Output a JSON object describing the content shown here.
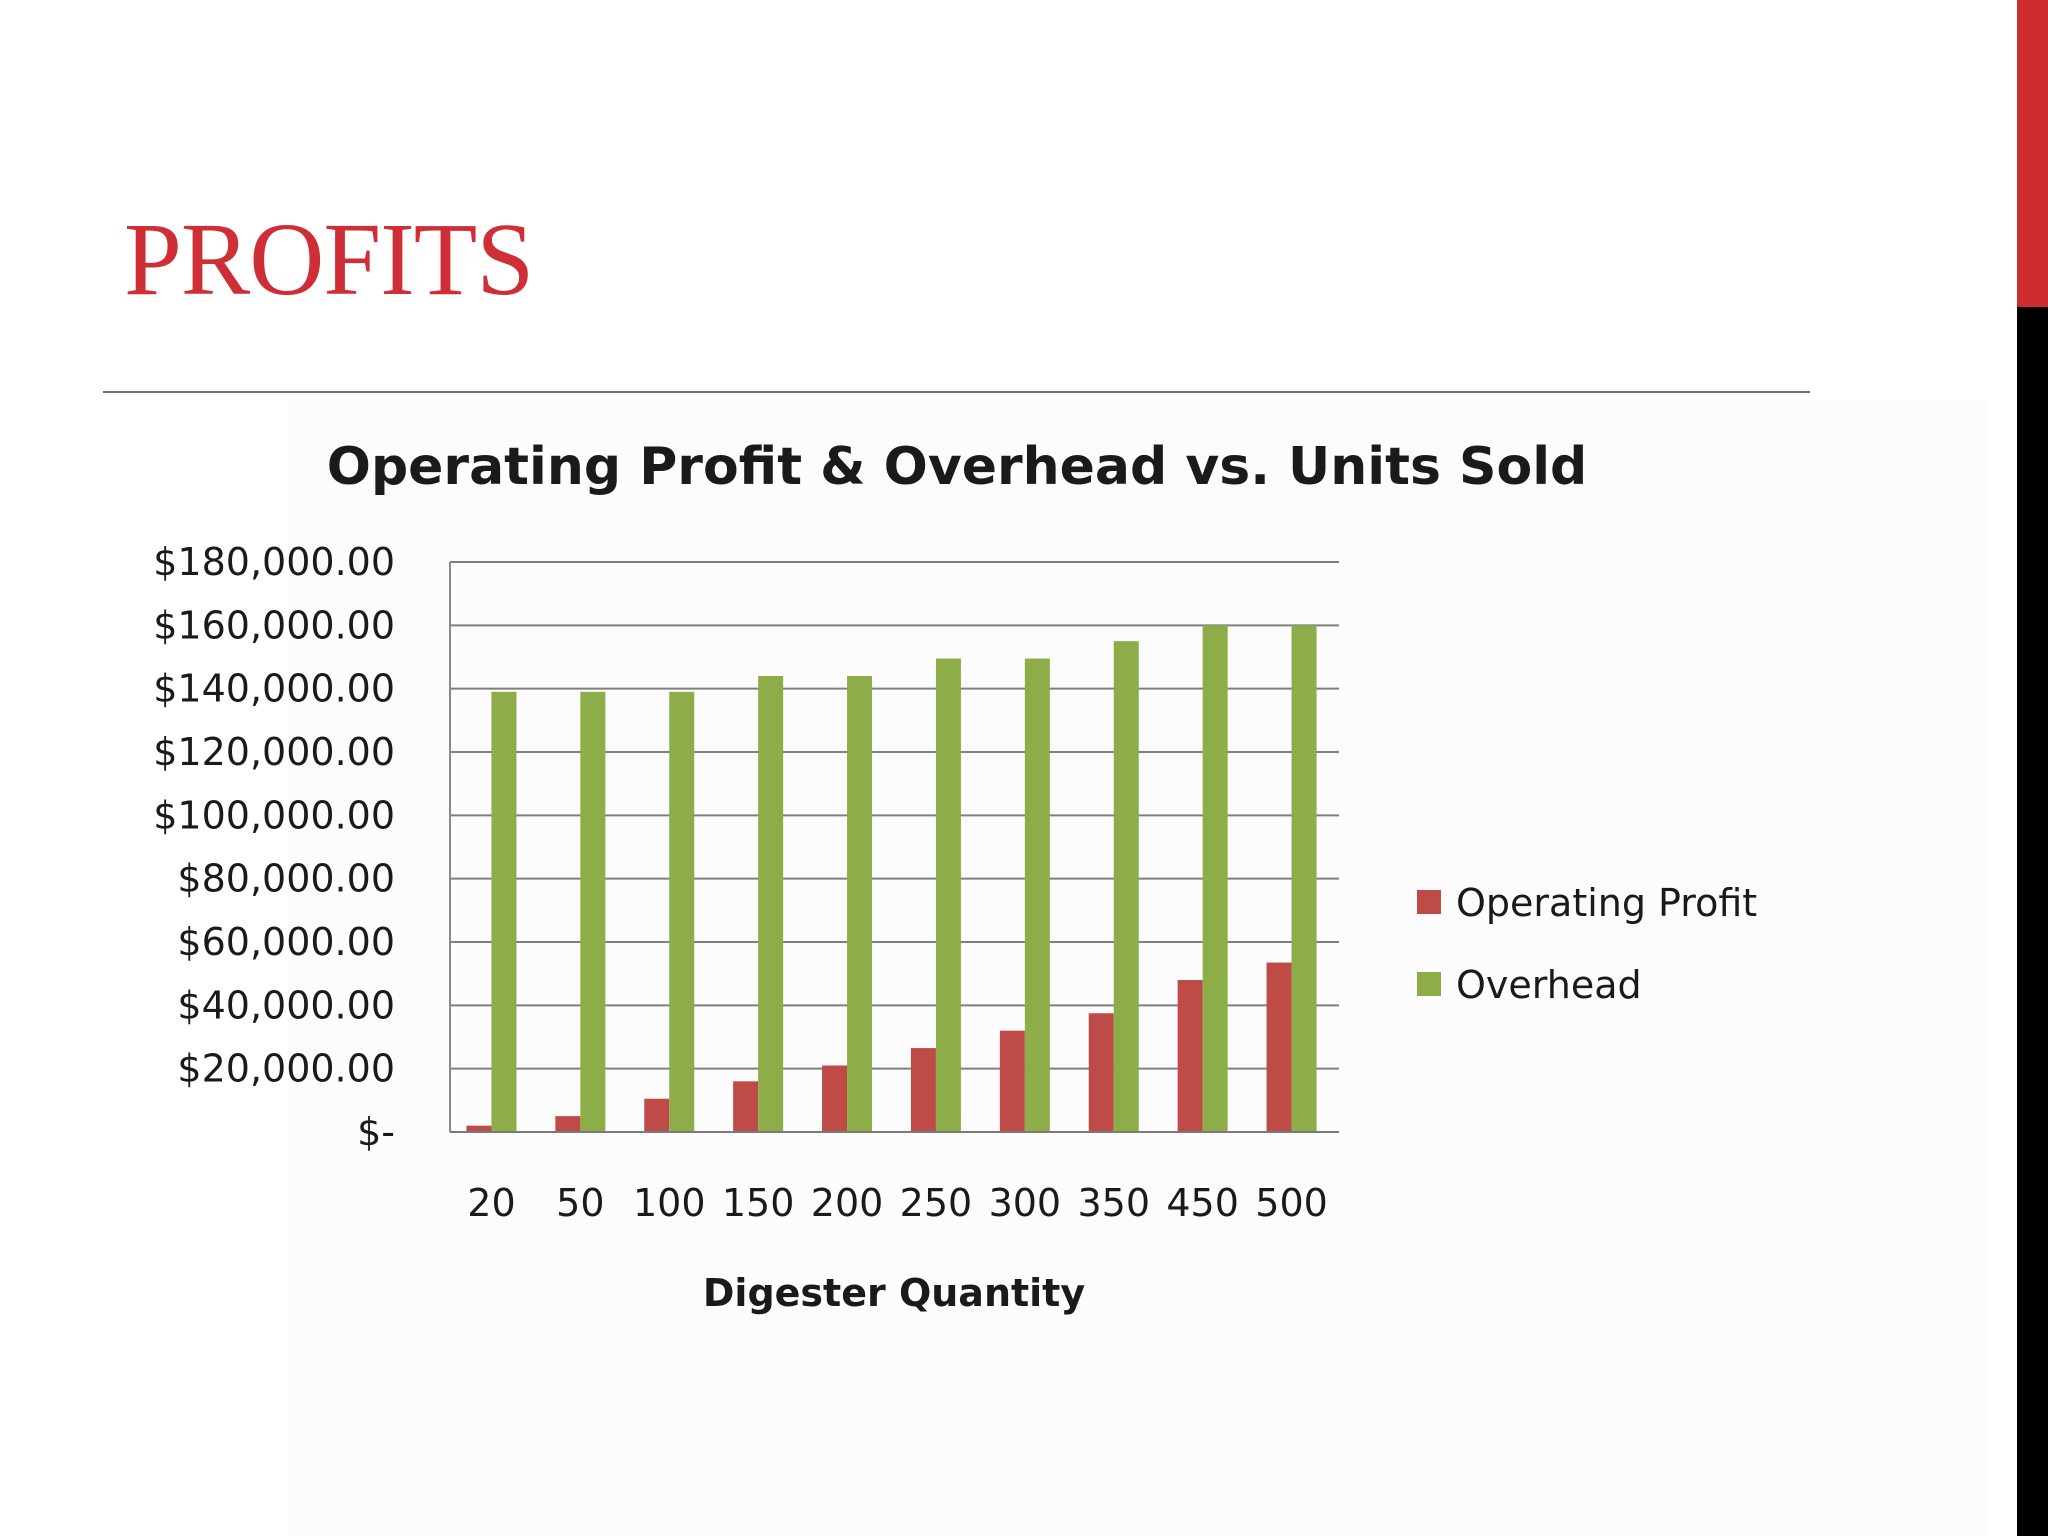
{
  "slide": {
    "title": "PROFITS",
    "colors": {
      "title": "#cf2e36",
      "side_bar_top": "#cf2d2d",
      "side_bar_bottom": "#000000"
    }
  },
  "chart_data": {
    "type": "bar",
    "title": "Operating Profit & Overhead vs. Units Sold",
    "xlabel": "Digester Quantity",
    "ylabel": "",
    "categories": [
      "20",
      "50",
      "100",
      "150",
      "200",
      "250",
      "300",
      "350",
      "450",
      "500"
    ],
    "series": [
      {
        "name": "Operating Profit",
        "color": "#be4b48",
        "values": [
          2000,
          5000,
          10500,
          16000,
          21000,
          26500,
          32000,
          37500,
          48000,
          53500
        ]
      },
      {
        "name": "Overhead",
        "color": "#8cad48",
        "values": [
          139000,
          139000,
          139000,
          144000,
          144000,
          149500,
          149500,
          155000,
          160000,
          160000
        ]
      }
    ],
    "ylim": [
      0,
      180000
    ],
    "yticks": [
      0,
      20000,
      40000,
      60000,
      80000,
      100000,
      120000,
      140000,
      160000,
      180000
    ],
    "ytick_labels": [
      "$-",
      "$20,000.00",
      "$40,000.00",
      "$60,000.00",
      "$80,000.00",
      "$100,000.00",
      "$120,000.00",
      "$140,000.00",
      "$160,000.00",
      "$180,000.00"
    ],
    "grid": true,
    "legend": "right"
  }
}
